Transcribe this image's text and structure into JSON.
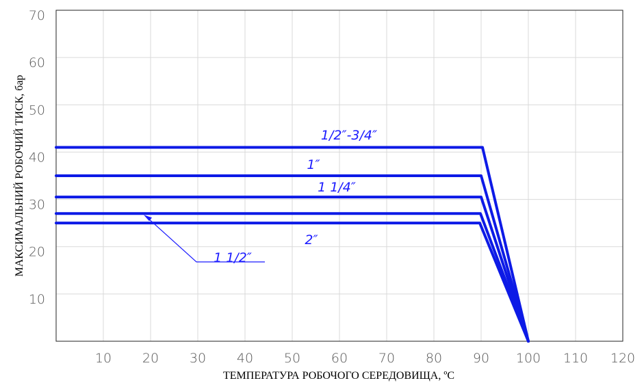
{
  "chart_data": {
    "type": "line",
    "title": "",
    "xlabel": "ТЕМПЕРАТУРА РОБОЧОГО СЕРЕДОВИЩА, ºС",
    "ylabel": "МАКСИМАЛЬНИЙ РОБОЧИЙ ТИСК, бар",
    "xlim": [
      0,
      120
    ],
    "ylim": [
      0,
      70
    ],
    "xticks": [
      10,
      20,
      30,
      40,
      50,
      60,
      70,
      80,
      90,
      100,
      110,
      120
    ],
    "yticks": [
      10,
      20,
      30,
      40,
      50,
      60,
      70
    ],
    "grid": true,
    "series": [
      {
        "name": "1/2″-3/4″",
        "x": [
          0,
          90,
          100
        ],
        "y": [
          41,
          41,
          0
        ]
      },
      {
        "name": "1″",
        "x": [
          0,
          90,
          100
        ],
        "y": [
          35,
          35,
          0
        ]
      },
      {
        "name": "1 1/4″",
        "x": [
          0,
          90,
          100
        ],
        "y": [
          30.5,
          30.5,
          0
        ]
      },
      {
        "name": "1 1/2″",
        "x": [
          0,
          90,
          100
        ],
        "y": [
          27,
          27,
          0
        ]
      },
      {
        "name": "2″",
        "x": [
          0,
          90,
          100
        ],
        "y": [
          25,
          25,
          0
        ]
      }
    ],
    "series_color": "#0d1ae6"
  }
}
